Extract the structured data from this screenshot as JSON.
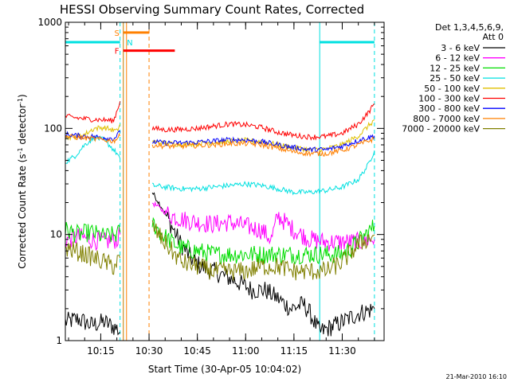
{
  "chart_data": {
    "type": "line",
    "title": "HESSI Observing Summary Count Rates, Corrected",
    "xlabel": "Start Time (30-Apr-05 10:04:02)",
    "ylabel_parts": [
      "Corrected Count Rate (s",
      "-1",
      " detector",
      "-1",
      ")"
    ],
    "y_scale": "log",
    "ylim": [
      1,
      1000
    ],
    "y_ticks": [
      1,
      10,
      100,
      1000
    ],
    "y_tick_labels": [
      "1",
      "10",
      "100",
      "1000"
    ],
    "xlim": [
      "10:04",
      "11:43"
    ],
    "x_ticks": [
      "10:15",
      "10:30",
      "10:45",
      "11:00",
      "11:15",
      "11:30"
    ],
    "legend_header": [
      "Det 1,3,4,5,6,9,",
      "Att 0"
    ],
    "timestamp": "21-Mar-2010 16:10",
    "flag_labels": [
      {
        "text": "S",
        "color": "#ff8000"
      },
      {
        "text": "N",
        "color": "#00e0e0"
      },
      {
        "text": "F",
        "color": "#ff0000"
      }
    ],
    "flag_bars": [
      {
        "label": "S",
        "color": "#ff8000",
        "start": "10:22",
        "end": "10:30",
        "y": 800
      },
      {
        "label": "N",
        "color": "#00e0e0",
        "start": "10:04",
        "end": "10:21",
        "y": 650
      },
      {
        "label": "N",
        "color": "#00e0e0",
        "start": "11:23",
        "end": "11:40",
        "y": 650
      },
      {
        "label": "F",
        "color": "#ff0000",
        "start": "10:22",
        "end": "10:38",
        "y": 540
      }
    ],
    "vlines": [
      {
        "time": "10:21",
        "color": "#00e0e0",
        "style": "dashed"
      },
      {
        "time": "10:22",
        "color": "#00e0e0",
        "style": "solid"
      },
      {
        "time": "10:22",
        "color": "#ff8000",
        "style": "solid"
      },
      {
        "time": "10:23",
        "color": "#ff8000",
        "style": "solid"
      },
      {
        "time": "10:30",
        "color": "#ff8000",
        "style": "dashed"
      },
      {
        "time": "11:23",
        "color": "#00e0e0",
        "style": "solid"
      },
      {
        "time": "11:40",
        "color": "#00e0e0",
        "style": "dashed"
      }
    ],
    "series": [
      {
        "name": "3 - 6 keV",
        "color": "#000000",
        "segments": [
          {
            "x": [
              "10:04",
              "10:08",
              "10:12",
              "10:16",
              "10:20",
              "10:21"
            ],
            "y": [
              1.5,
              1.6,
              1.4,
              1.5,
              1.3,
              1.2
            ]
          },
          {
            "x": [
              "10:31",
              "10:34",
              "10:37",
              "10:40",
              "10:43",
              "10:46",
              "10:50",
              "10:54",
              "10:58",
              "11:02",
              "11:06",
              "11:10",
              "11:14",
              "11:18",
              "11:20",
              "11:23",
              "11:30",
              "11:35",
              "11:40"
            ],
            "y": [
              25,
              18,
              12,
              8,
              6,
              5,
              4.5,
              4,
              3.5,
              3,
              3,
              2.5,
              2,
              2.2,
              1.8,
              1.2,
              1.5,
              1.8,
              2.0
            ]
          }
        ]
      },
      {
        "name": "6 - 12 keV",
        "color": "#ff00ff",
        "segments": [
          {
            "x": [
              "10:04",
              "10:08",
              "10:12",
              "10:16",
              "10:20",
              "10:21"
            ],
            "y": [
              9,
              9.5,
              9,
              8.5,
              9,
              10
            ]
          },
          {
            "x": [
              "10:31",
              "10:34",
              "10:37",
              "10:40",
              "10:45",
              "10:50",
              "10:55",
              "11:00",
              "11:05",
              "11:08",
              "11:10",
              "11:15",
              "11:20",
              "11:25",
              "11:30",
              "11:35",
              "11:40"
            ],
            "y": [
              20,
              17,
              15,
              14,
              13,
              12.5,
              13,
              12,
              11,
              9,
              15,
              11,
              9,
              8.5,
              8.5,
              8.5,
              9
            ]
          }
        ]
      },
      {
        "name": "12 - 25 keV",
        "color": "#00dd00",
        "segments": [
          {
            "x": [
              "10:04",
              "10:08",
              "10:12",
              "10:16",
              "10:20",
              "10:21"
            ],
            "y": [
              11,
              10,
              10.5,
              9.5,
              10,
              10.5
            ]
          },
          {
            "x": [
              "10:31",
              "10:34",
              "10:37",
              "10:40",
              "10:45",
              "10:50",
              "10:55",
              "11:00",
              "11:05",
              "11:10",
              "11:15",
              "11:20",
              "11:25",
              "11:30",
              "11:35",
              "11:40"
            ],
            "y": [
              13,
              10,
              8.5,
              7.5,
              7,
              6.5,
              6.5,
              6.5,
              6.5,
              6.5,
              6.5,
              6.5,
              6.5,
              6.5,
              8.5,
              12
            ]
          }
        ]
      },
      {
        "name": "25 - 50 keV",
        "color": "#00e0e0",
        "segments": [
          {
            "x": [
              "10:04",
              "10:07",
              "10:10",
              "10:13",
              "10:16",
              "10:18",
              "10:20",
              "10:21"
            ],
            "y": [
              48,
              55,
              70,
              82,
              78,
              68,
              58,
              52
            ]
          },
          {
            "x": [
              "10:31",
              "10:35",
              "10:40",
              "10:45",
              "10:50",
              "10:55",
              "11:00",
              "11:05",
              "11:10",
              "11:15",
              "11:20",
              "11:25",
              "11:30",
              "11:35",
              "11:38",
              "11:40"
            ],
            "y": [
              29,
              28,
              27,
              27,
              28,
              29,
              30,
              29,
              27,
              25,
              25,
              26,
              28,
              33,
              45,
              62
            ]
          }
        ]
      },
      {
        "name": "50 - 100 keV",
        "color": "#e0c000",
        "segments": [
          {
            "x": [
              "10:04",
              "10:07",
              "10:10",
              "10:13",
              "10:16",
              "10:18",
              "10:20",
              "10:21"
            ],
            "y": [
              82,
              84,
              88,
              100,
              102,
              98,
              94,
              110
            ]
          },
          {
            "x": [
              "10:31",
              "10:35",
              "10:40",
              "10:45",
              "10:50",
              "10:55",
              "11:00",
              "11:05",
              "11:10",
              "11:15",
              "11:20",
              "11:25",
              "11:30",
              "11:35",
              "11:40"
            ],
            "y": [
              75,
              72,
              71,
              72,
              74,
              76,
              77,
              75,
              70,
              66,
              63,
              64,
              70,
              85,
              120
            ]
          }
        ]
      },
      {
        "name": "100 - 300 keV",
        "color": "#ff0000",
        "segments": [
          {
            "x": [
              "10:04",
              "10:08",
              "10:12",
              "10:16",
              "10:19",
              "10:21"
            ],
            "y": [
              130,
              125,
              122,
              120,
              118,
              180
            ]
          },
          {
            "x": [
              "10:31",
              "10:35",
              "10:40",
              "10:45",
              "10:50",
              "10:55",
              "11:00",
              "11:05",
              "11:10",
              "11:15",
              "11:20",
              "11:25",
              "11:30",
              "11:35",
              "11:38",
              "11:40"
            ],
            "y": [
              100,
              97,
              98,
              100,
              105,
              110,
              108,
              102,
              92,
              86,
              83,
              84,
              90,
              110,
              140,
              170
            ]
          }
        ]
      },
      {
        "name": "300 - 800 keV",
        "color": "#0000ff",
        "segments": [
          {
            "x": [
              "10:04",
              "10:08",
              "10:12",
              "10:16",
              "10:19",
              "10:21"
            ],
            "y": [
              88,
              85,
              84,
              82,
              80,
              92
            ]
          },
          {
            "x": [
              "10:31",
              "10:35",
              "10:40",
              "10:45",
              "10:50",
              "10:55",
              "11:00",
              "11:05",
              "11:10",
              "11:15",
              "11:20",
              "11:25",
              "11:30",
              "11:35",
              "11:40"
            ],
            "y": [
              75,
              73,
              73,
              74,
              76,
              78,
              78,
              75,
              70,
              66,
              63,
              63,
              68,
              77,
              85
            ]
          }
        ]
      },
      {
        "name": "800 - 7000 keV",
        "color": "#ff8000",
        "segments": [
          {
            "x": [
              "10:04",
              "10:08",
              "10:12",
              "10:16",
              "10:19",
              "10:21"
            ],
            "y": [
              84,
              82,
              80,
              78,
              76,
              85
            ]
          },
          {
            "x": [
              "10:31",
              "10:35",
              "10:40",
              "10:45",
              "10:50",
              "10:55",
              "11:00",
              "11:05",
              "11:10",
              "11:15",
              "11:20",
              "11:25",
              "11:30",
              "11:35",
              "11:40"
            ],
            "y": [
              70,
              68,
              68,
              69,
              70,
              72,
              72,
              70,
              65,
              60,
              58,
              58,
              62,
              70,
              80
            ]
          }
        ]
      },
      {
        "name": "7000 - 20000 keV",
        "color": "#808000",
        "segments": [
          {
            "x": [
              "10:04",
              "10:07",
              "10:10",
              "10:13",
              "10:16",
              "10:19",
              "10:21"
            ],
            "y": [
              7.5,
              7,
              6.5,
              6,
              5.5,
              5,
              6
            ]
          },
          {
            "x": [
              "10:31",
              "10:34",
              "10:37",
              "10:40",
              "10:45",
              "10:50",
              "10:55",
              "11:00",
              "11:05",
              "11:10",
              "11:15",
              "11:20",
              "11:25",
              "11:30",
              "11:35",
              "11:40"
            ],
            "y": [
              12,
              9,
              7,
              5.5,
              5,
              4.5,
              4.5,
              4.5,
              5,
              5,
              4.5,
              4.5,
              4.5,
              5.5,
              8,
              10
            ]
          }
        ]
      }
    ]
  }
}
